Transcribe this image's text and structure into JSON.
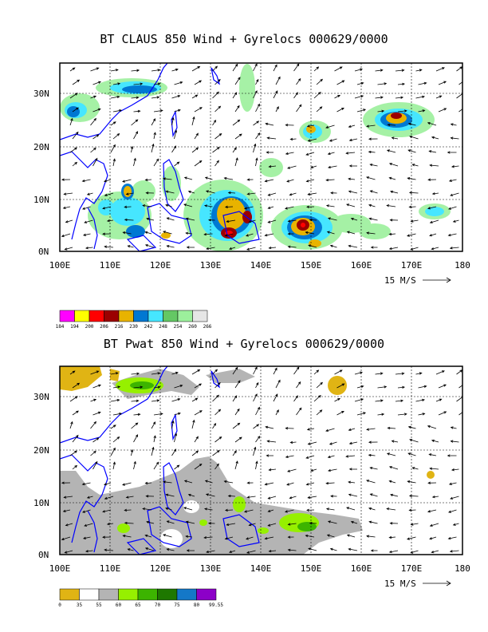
{
  "maps": [
    {
      "title": "BT CLAUS 850 Wind + Gyrelocs 000629/0000",
      "lat_labels": [
        "30N",
        "20N",
        "10N",
        "0N"
      ],
      "lon_labels": [
        "100E",
        "110E",
        "120E",
        "130E",
        "140E",
        "150E",
        "160E",
        "170E",
        "180"
      ],
      "vector_label": "15 M/S",
      "colorbar": {
        "colors": [
          "#ff00ff",
          "#ffff00",
          "#ff0000",
          "#9b0000",
          "#e8b300",
          "#0078d2",
          "#46e6ff",
          "#64c864",
          "#9cf09c",
          "#e6e6e6"
        ],
        "labels": [
          "184",
          "194",
          "200",
          "206",
          "216",
          "230",
          "242",
          "248",
          "254",
          "260",
          "266"
        ]
      }
    },
    {
      "title": "BT Pwat 850 Wind + Gyrelocs 000629/0000",
      "lat_labels": [
        "30N",
        "20N",
        "10N",
        "0N"
      ],
      "lon_labels": [
        "100E",
        "110E",
        "120E",
        "130E",
        "140E",
        "150E",
        "160E",
        "170E",
        "180"
      ],
      "vector_label": "15 M/S",
      "colorbar": {
        "colors": [
          "#e0b414",
          "#ffffff",
          "#b4b4b4",
          "#96f000",
          "#3cb400",
          "#1e7800",
          "#1478c8",
          "#8c00c8"
        ],
        "labels": [
          "0",
          "35",
          "55",
          "60",
          "65",
          "70",
          "75",
          "80",
          "99.55"
        ]
      }
    }
  ]
}
